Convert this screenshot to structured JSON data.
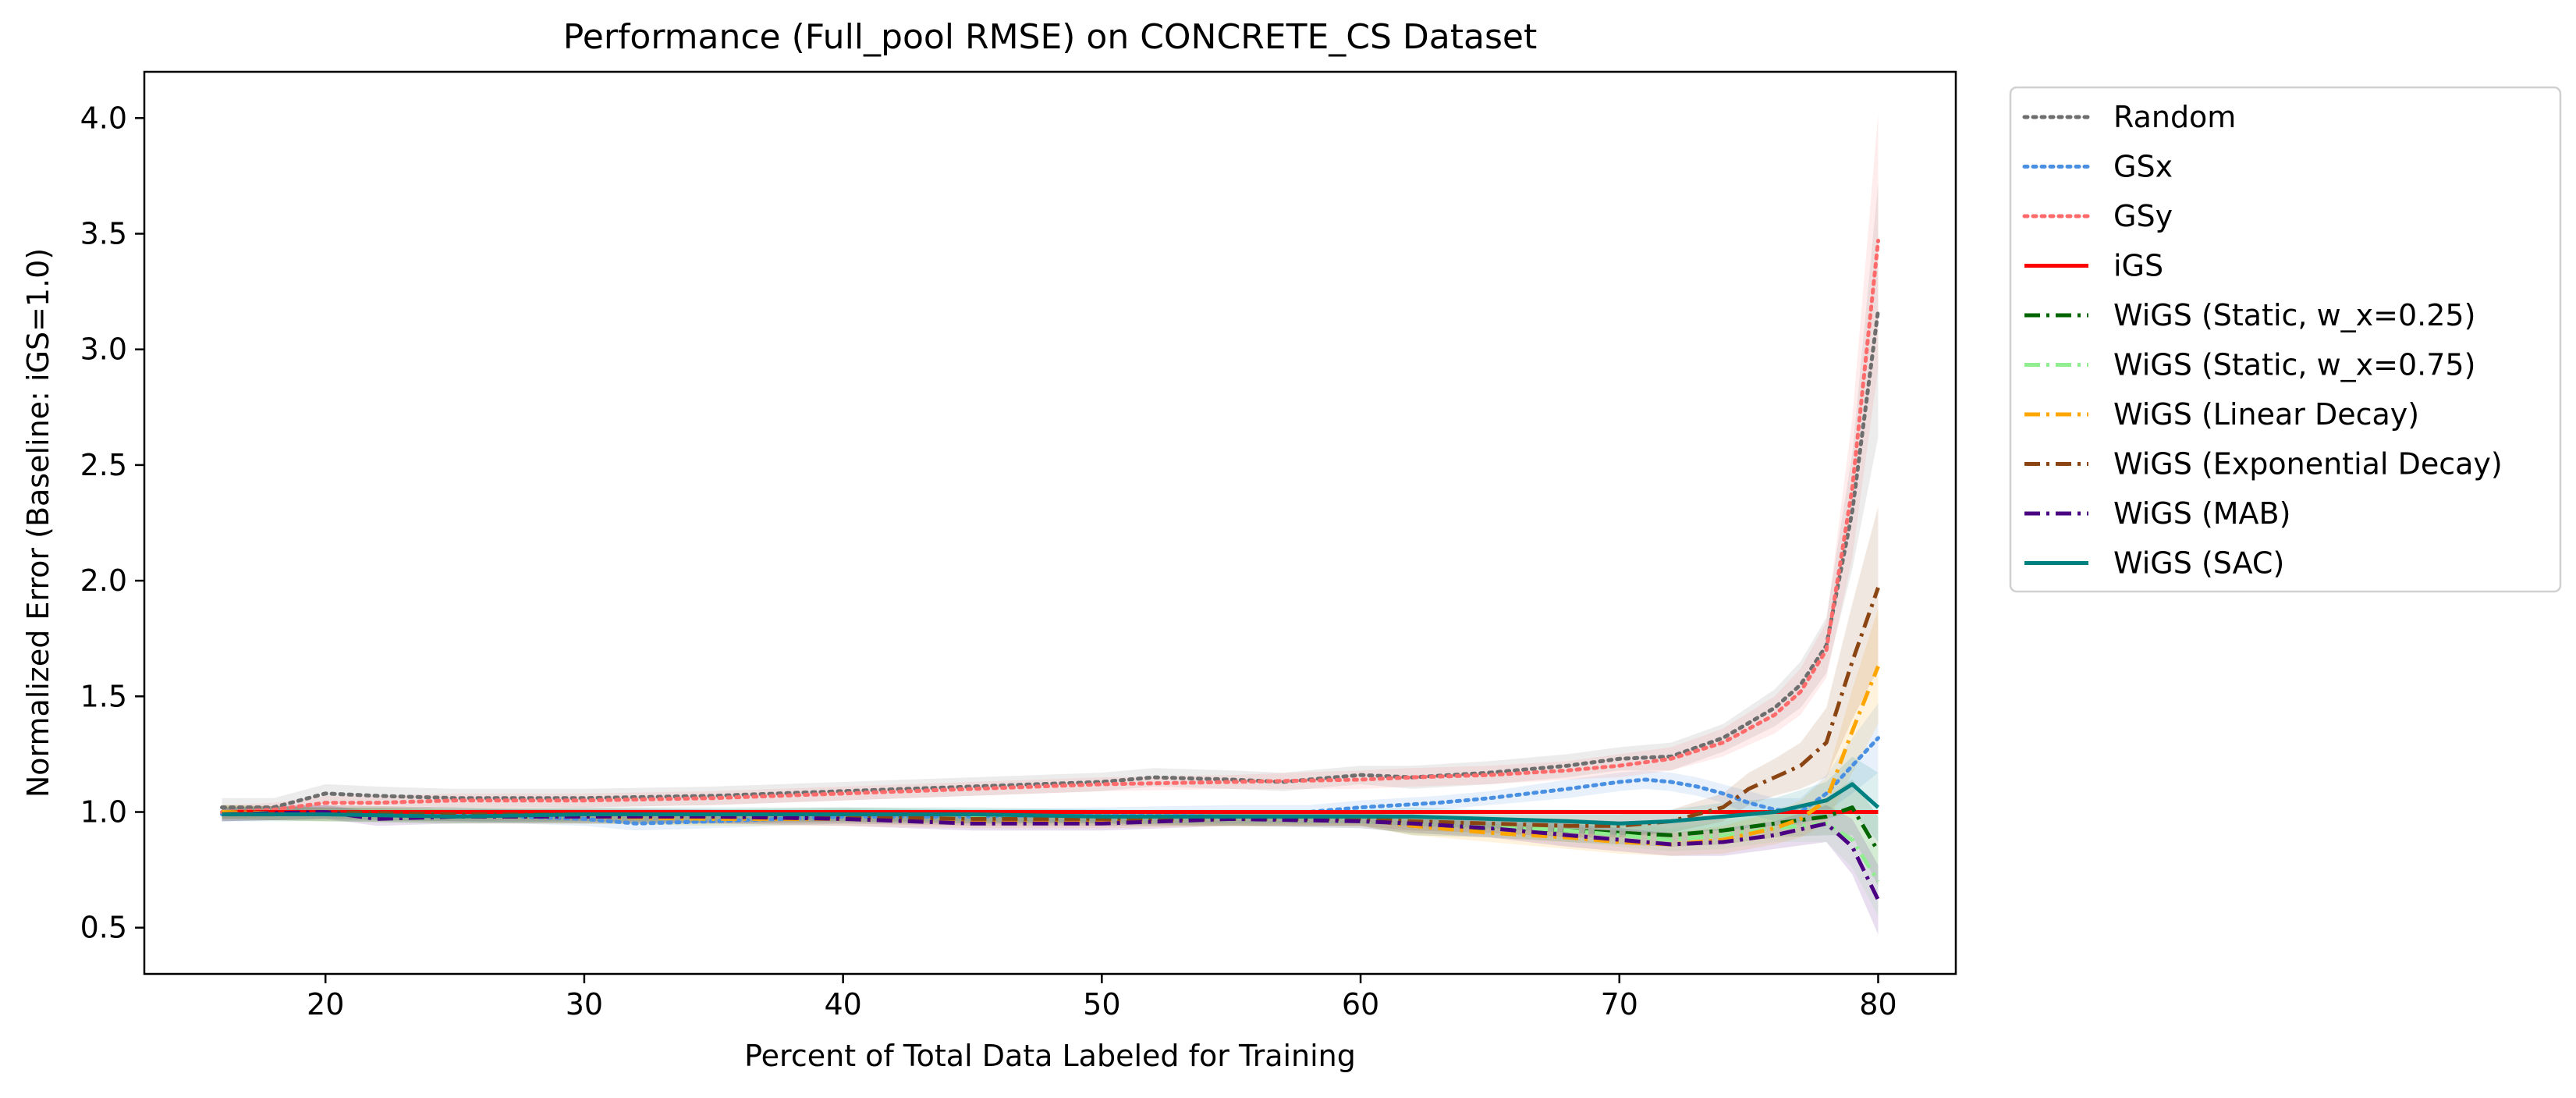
{
  "chart_data": {
    "type": "line",
    "title": "Performance (Full_pool RMSE) on CONCRETE_CS Dataset",
    "xlabel": "Percent of Total Data Labeled for Training",
    "ylabel": "Normalized Error (Baseline: iGS=1.0)",
    "xlim": [
      13,
      83
    ],
    "ylim": [
      0.3,
      4.2
    ],
    "xticks": [
      20,
      30,
      40,
      50,
      60,
      70,
      80
    ],
    "yticks": [
      0.5,
      1.0,
      1.5,
      2.0,
      2.5,
      3.0,
      3.5,
      4.0
    ],
    "xtick_labels": [
      "20",
      "30",
      "40",
      "50",
      "60",
      "70",
      "80"
    ],
    "ytick_labels": [
      "0.5",
      "1.0",
      "1.5",
      "2.0",
      "2.5",
      "3.0",
      "3.5",
      "4.0"
    ],
    "grid": false,
    "legend_position": "outside-right-top",
    "series": [
      {
        "name": "Random",
        "color": "#6e6e6e",
        "style": "dotted",
        "x": [
          16,
          18,
          20,
          22,
          25,
          30,
          35,
          40,
          45,
          50,
          52,
          55,
          57,
          60,
          62,
          65,
          68,
          70,
          72,
          74,
          76,
          77,
          78,
          79,
          80
        ],
        "y": [
          1.02,
          1.02,
          1.08,
          1.07,
          1.06,
          1.06,
          1.07,
          1.09,
          1.11,
          1.13,
          1.15,
          1.14,
          1.13,
          1.16,
          1.15,
          1.17,
          1.2,
          1.23,
          1.24,
          1.32,
          1.45,
          1.55,
          1.72,
          2.3,
          3.17
        ],
        "band": [
          0.04,
          0.04,
          0.04,
          0.04,
          0.04,
          0.04,
          0.04,
          0.04,
          0.04,
          0.04,
          0.04,
          0.04,
          0.04,
          0.04,
          0.05,
          0.05,
          0.05,
          0.05,
          0.06,
          0.06,
          0.08,
          0.1,
          0.12,
          0.25,
          0.55
        ]
      },
      {
        "name": "GSx",
        "color": "#4a90e2",
        "style": "dotted",
        "x": [
          16,
          20,
          25,
          30,
          32,
          35,
          40,
          45,
          50,
          55,
          58,
          60,
          63,
          65,
          68,
          70,
          71,
          72,
          73,
          74,
          75,
          76,
          77,
          78,
          79,
          80
        ],
        "y": [
          0.99,
          1.0,
          0.99,
          0.97,
          0.95,
          0.96,
          0.98,
          0.98,
          0.99,
          1.0,
          1.0,
          1.02,
          1.04,
          1.06,
          1.1,
          1.13,
          1.14,
          1.13,
          1.11,
          1.08,
          1.04,
          1.01,
          1.0,
          1.08,
          1.2,
          1.32
        ],
        "band": [
          0.03,
          0.03,
          0.03,
          0.03,
          0.03,
          0.03,
          0.03,
          0.03,
          0.03,
          0.03,
          0.03,
          0.03,
          0.03,
          0.03,
          0.04,
          0.04,
          0.04,
          0.04,
          0.04,
          0.04,
          0.05,
          0.05,
          0.06,
          0.08,
          0.12,
          0.15
        ]
      },
      {
        "name": "GSy",
        "color": "#ff6b6b",
        "style": "dotted",
        "x": [
          16,
          18,
          20,
          22,
          25,
          30,
          35,
          40,
          45,
          50,
          55,
          60,
          62,
          65,
          68,
          70,
          72,
          74,
          76,
          77,
          78,
          79,
          80
        ],
        "y": [
          1.0,
          1.01,
          1.04,
          1.04,
          1.05,
          1.05,
          1.06,
          1.08,
          1.1,
          1.12,
          1.13,
          1.14,
          1.15,
          1.16,
          1.18,
          1.2,
          1.23,
          1.3,
          1.42,
          1.52,
          1.7,
          2.4,
          3.47
        ],
        "band": [
          0.03,
          0.03,
          0.03,
          0.03,
          0.03,
          0.03,
          0.03,
          0.03,
          0.03,
          0.03,
          0.03,
          0.04,
          0.04,
          0.04,
          0.04,
          0.05,
          0.05,
          0.06,
          0.08,
          0.1,
          0.12,
          0.3,
          0.55
        ]
      },
      {
        "name": "iGS",
        "color": "#ff0000",
        "style": "solid",
        "x": [
          16,
          80
        ],
        "y": [
          1.0,
          1.0
        ]
      },
      {
        "name": "WiGS (Static, w_x=0.25)",
        "color": "#006400",
        "style": "dashdot",
        "x": [
          16,
          20,
          25,
          30,
          35,
          40,
          45,
          50,
          55,
          60,
          62,
          65,
          68,
          70,
          72,
          74,
          76,
          78,
          79,
          80
        ],
        "y": [
          1.0,
          0.99,
          0.99,
          0.98,
          0.98,
          0.99,
          0.98,
          0.98,
          0.97,
          0.97,
          0.94,
          0.93,
          0.92,
          0.91,
          0.9,
          0.92,
          0.95,
          0.98,
          1.02,
          0.83
        ],
        "band": [
          0.03,
          0.03,
          0.03,
          0.03,
          0.03,
          0.03,
          0.03,
          0.03,
          0.03,
          0.03,
          0.04,
          0.04,
          0.05,
          0.05,
          0.05,
          0.06,
          0.06,
          0.08,
          0.12,
          0.15
        ]
      },
      {
        "name": "WiGS (Static, w_x=0.75)",
        "color": "#90ee90",
        "style": "dashdot",
        "x": [
          16,
          20,
          25,
          30,
          35,
          40,
          45,
          50,
          55,
          60,
          62,
          65,
          68,
          70,
          72,
          74,
          76,
          78,
          79,
          80
        ],
        "y": [
          1.0,
          0.99,
          0.98,
          0.98,
          0.97,
          0.98,
          0.98,
          0.97,
          0.97,
          0.96,
          0.95,
          0.94,
          0.92,
          0.9,
          0.88,
          0.9,
          0.93,
          0.95,
          0.88,
          0.7
        ],
        "band": [
          0.03,
          0.03,
          0.03,
          0.03,
          0.03,
          0.03,
          0.03,
          0.03,
          0.03,
          0.03,
          0.04,
          0.04,
          0.05,
          0.05,
          0.05,
          0.06,
          0.06,
          0.08,
          0.12,
          0.15
        ]
      },
      {
        "name": "WiGS (Linear Decay)",
        "color": "#ffa500",
        "style": "dashdot",
        "x": [
          16,
          20,
          25,
          30,
          35,
          40,
          45,
          50,
          55,
          60,
          62,
          65,
          68,
          70,
          72,
          74,
          76,
          77,
          78,
          79,
          80
        ],
        "y": [
          1.0,
          0.99,
          0.98,
          0.98,
          0.97,
          0.97,
          0.96,
          0.96,
          0.97,
          0.97,
          0.94,
          0.91,
          0.89,
          0.87,
          0.86,
          0.88,
          0.93,
          0.97,
          1.05,
          1.35,
          1.63
        ],
        "band": [
          0.03,
          0.03,
          0.03,
          0.03,
          0.03,
          0.03,
          0.03,
          0.03,
          0.03,
          0.03,
          0.04,
          0.04,
          0.05,
          0.05,
          0.05,
          0.06,
          0.07,
          0.08,
          0.1,
          0.18,
          0.25
        ]
      },
      {
        "name": "WiGS (Exponential Decay)",
        "color": "#8b4513",
        "style": "dashdot",
        "x": [
          16,
          20,
          25,
          30,
          35,
          40,
          45,
          50,
          55,
          60,
          62,
          65,
          68,
          70,
          72,
          74,
          75,
          76,
          77,
          78,
          79,
          80
        ],
        "y": [
          0.99,
          1.0,
          0.99,
          0.99,
          0.98,
          0.98,
          0.97,
          0.97,
          0.97,
          0.97,
          0.96,
          0.95,
          0.94,
          0.94,
          0.96,
          1.02,
          1.1,
          1.15,
          1.2,
          1.3,
          1.65,
          1.97
        ],
        "band": [
          0.03,
          0.03,
          0.03,
          0.03,
          0.03,
          0.03,
          0.03,
          0.03,
          0.03,
          0.03,
          0.04,
          0.04,
          0.05,
          0.05,
          0.05,
          0.06,
          0.07,
          0.08,
          0.1,
          0.15,
          0.25,
          0.35
        ]
      },
      {
        "name": "WiGS (MAB)",
        "color": "#4b0082",
        "style": "dashdot",
        "x": [
          16,
          20,
          22,
          25,
          30,
          35,
          40,
          45,
          50,
          55,
          60,
          62,
          65,
          68,
          70,
          72,
          74,
          76,
          78,
          79,
          80
        ],
        "y": [
          0.99,
          1.0,
          0.97,
          0.98,
          0.98,
          0.98,
          0.97,
          0.95,
          0.95,
          0.97,
          0.96,
          0.95,
          0.93,
          0.9,
          0.88,
          0.86,
          0.87,
          0.9,
          0.95,
          0.85,
          0.62
        ],
        "band": [
          0.03,
          0.03,
          0.03,
          0.03,
          0.03,
          0.03,
          0.03,
          0.03,
          0.03,
          0.03,
          0.03,
          0.04,
          0.04,
          0.05,
          0.05,
          0.05,
          0.06,
          0.06,
          0.08,
          0.12,
          0.15
        ]
      },
      {
        "name": "WiGS (SAC)",
        "color": "#008080",
        "style": "solid",
        "x": [
          16,
          20,
          25,
          30,
          35,
          40,
          45,
          50,
          55,
          60,
          62,
          65,
          68,
          70,
          72,
          74,
          76,
          78,
          79,
          80
        ],
        "y": [
          0.99,
          0.99,
          0.98,
          0.99,
          0.99,
          0.99,
          0.99,
          0.98,
          0.98,
          0.98,
          0.98,
          0.97,
          0.96,
          0.95,
          0.96,
          0.98,
          1.0,
          1.05,
          1.12,
          1.02
        ],
        "band": [
          0.03,
          0.03,
          0.03,
          0.03,
          0.03,
          0.03,
          0.03,
          0.03,
          0.03,
          0.03,
          0.04,
          0.04,
          0.05,
          0.05,
          0.05,
          0.06,
          0.06,
          0.08,
          0.12,
          0.15
        ]
      }
    ]
  }
}
